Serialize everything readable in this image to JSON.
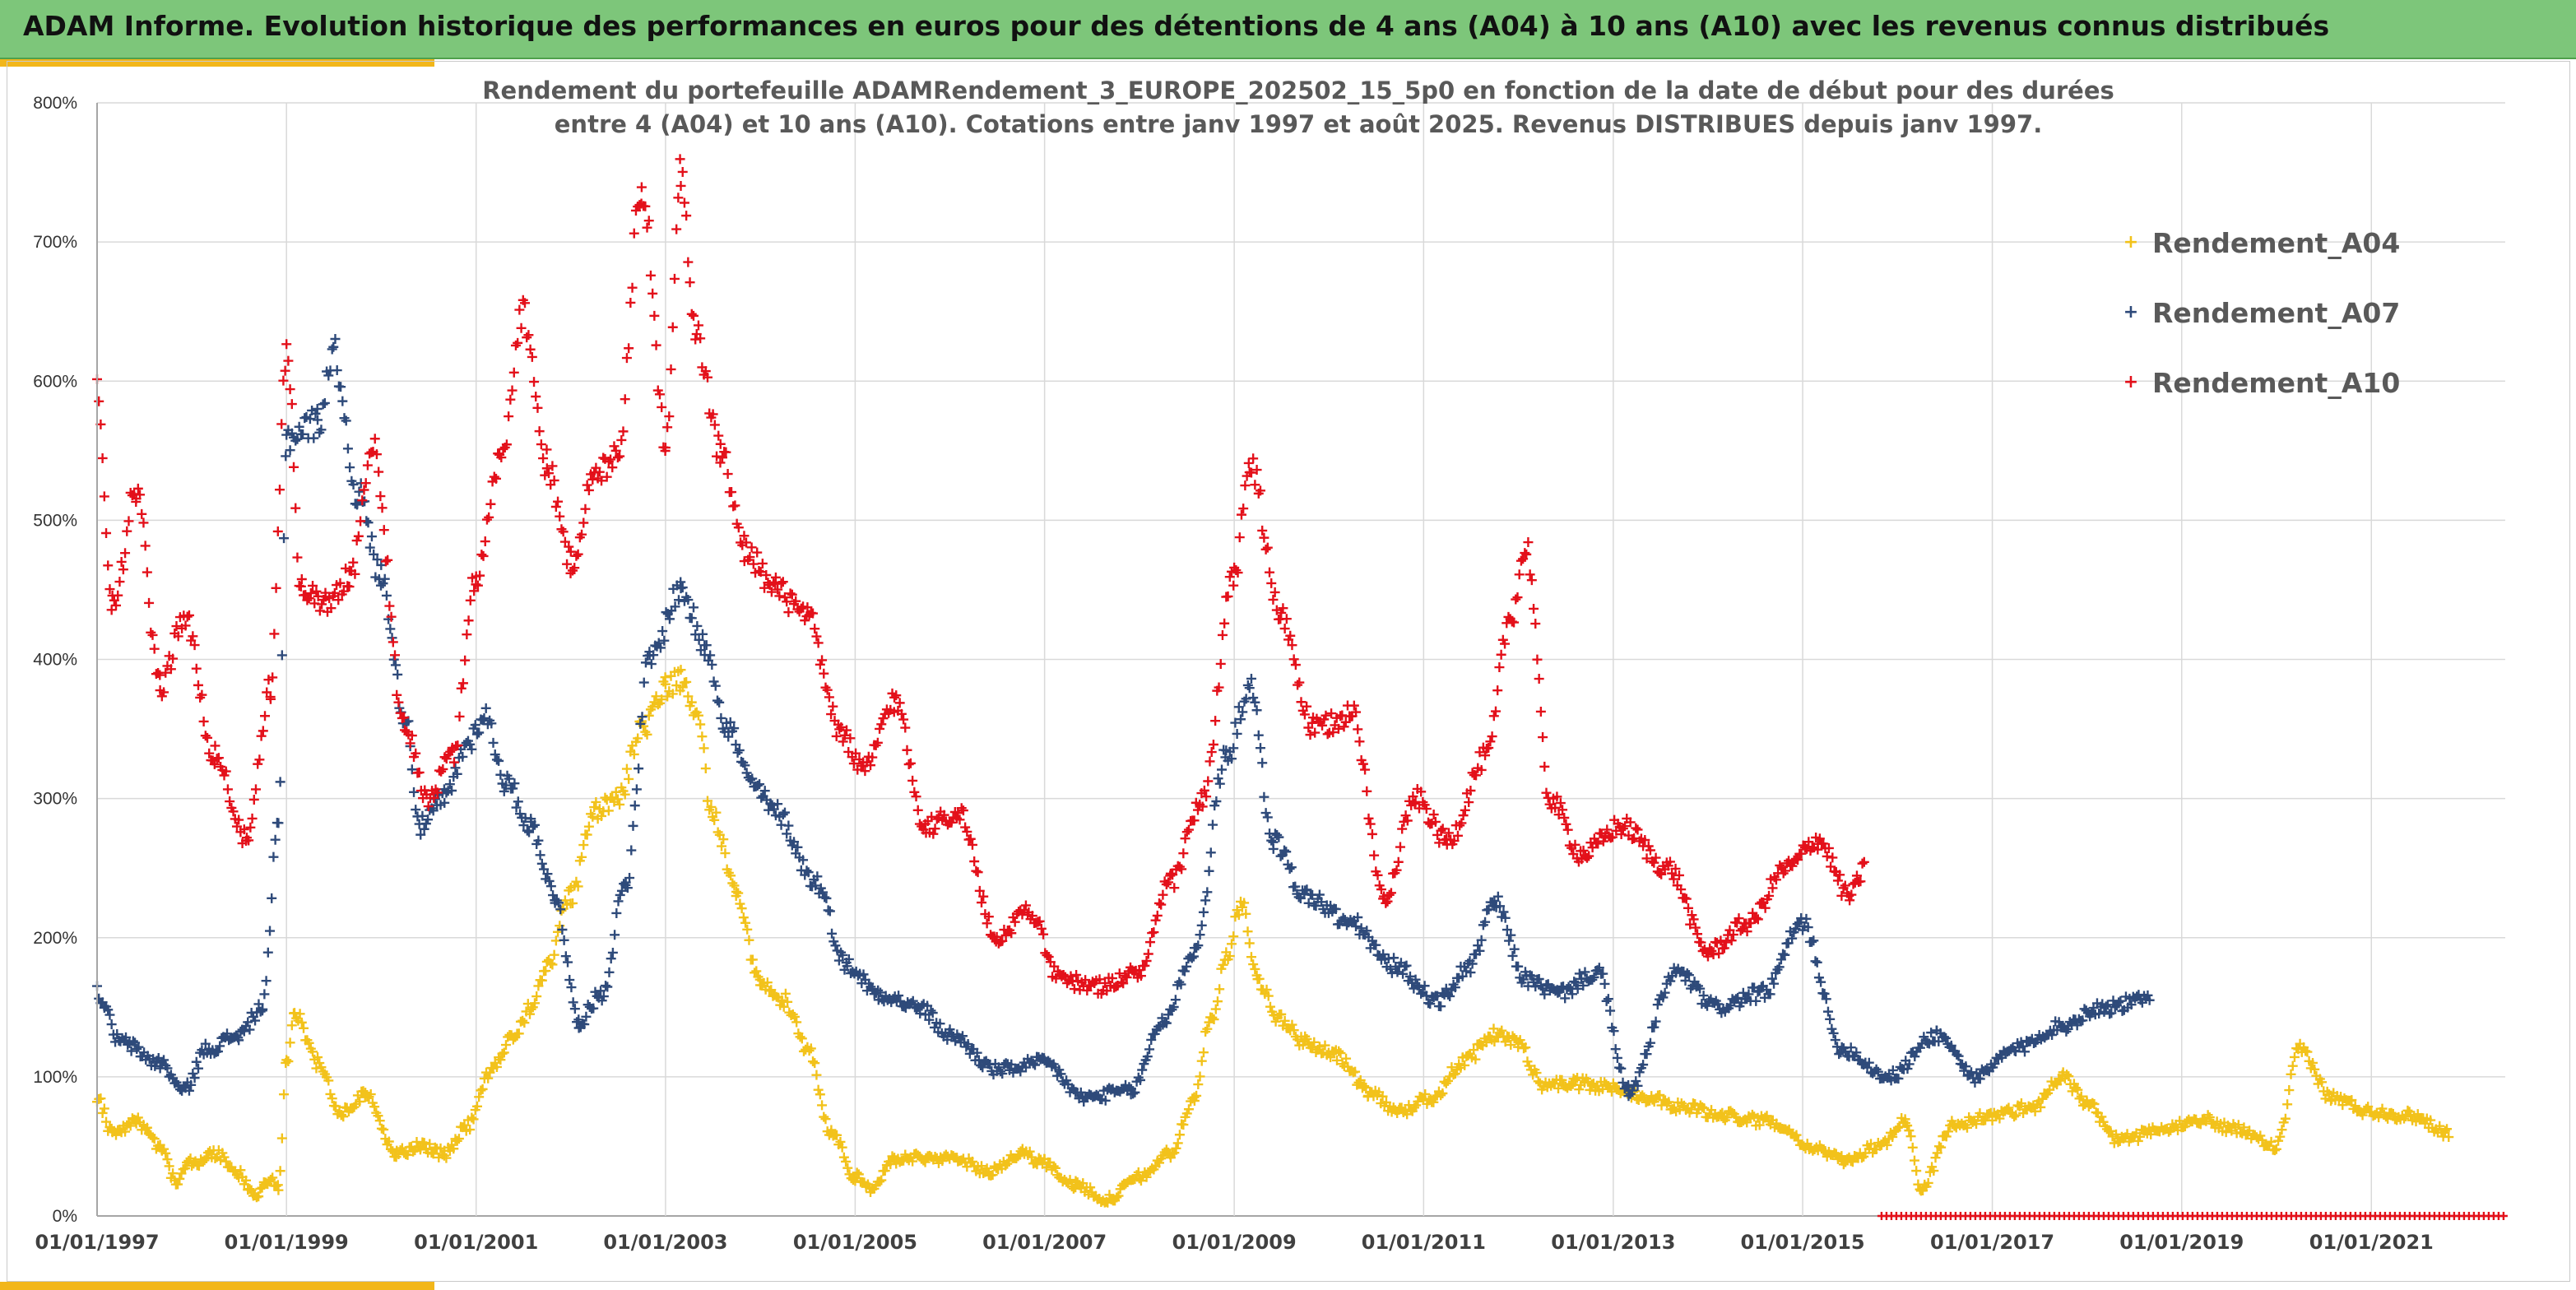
{
  "banner": {
    "title": "ADAM Informe. Evolution historique des performances en euros pour des détentions de 4 ans (A04) à 10 ans (A10) avec les revenus connus distribués"
  },
  "colors": {
    "banner_bg": "#7dc67a",
    "accent_gold": "#f2b61a",
    "grid": "#d9d9d9",
    "axis": "#a6a6a6"
  },
  "chart_data": {
    "type": "scatter",
    "title_lines": [
      "Rendement du portefeuille ADAMRendement_3_EUROPE_202502_15_5p0  en fonction de la date de début pour des durées",
      "entre 4 (A04) et 10 ans (A10). Cotations entre janv 1997 et août 2025. Revenus DISTRIBUES depuis janv 1997."
    ],
    "xlabel": "",
    "ylabel": "",
    "x_range": [
      "1997-01-01",
      "2022-06-01"
    ],
    "x_ticks": [
      "01/01/1997",
      "01/01/1999",
      "01/01/2001",
      "01/01/2003",
      "01/01/2005",
      "01/01/2007",
      "01/01/2009",
      "01/01/2011",
      "01/01/2013",
      "01/01/2015",
      "01/01/2017",
      "01/01/2019",
      "01/01/2021"
    ],
    "ylim": [
      0,
      8
    ],
    "y_ticks": [
      "0%",
      "100%",
      "200%",
      "300%",
      "400%",
      "500%",
      "600%",
      "700%",
      "800%"
    ],
    "grid": true,
    "marker": "+",
    "legend_position": "top-right",
    "series": [
      {
        "name": "Rendement_A04",
        "color": "#f2c21b",
        "points": [
          [
            "1997-01-01",
            0.85
          ],
          [
            "1997-03-01",
            0.6
          ],
          [
            "1997-06-01",
            0.68
          ],
          [
            "1997-09-01",
            0.5
          ],
          [
            "1997-11-01",
            0.25
          ],
          [
            "1998-01-01",
            0.38
          ],
          [
            "1998-04-01",
            0.45
          ],
          [
            "1998-07-01",
            0.3
          ],
          [
            "1998-09-01",
            0.15
          ],
          [
            "1998-11-01",
            0.25
          ],
          [
            "1998-12-01",
            0.2
          ],
          [
            "1999-01-01",
            1.1
          ],
          [
            "1999-02-01",
            1.45
          ],
          [
            "1999-05-01",
            1.1
          ],
          [
            "1999-08-01",
            0.75
          ],
          [
            "1999-11-01",
            0.88
          ],
          [
            "2000-03-01",
            0.45
          ],
          [
            "2000-06-01",
            0.5
          ],
          [
            "2000-09-01",
            0.45
          ],
          [
            "2000-12-01",
            0.65
          ],
          [
            "2001-03-01",
            1.05
          ],
          [
            "2001-06-01",
            1.3
          ],
          [
            "2001-08-01",
            1.5
          ],
          [
            "2001-10-01",
            1.8
          ],
          [
            "2002-01-01",
            2.3
          ],
          [
            "2002-04-01",
            2.9
          ],
          [
            "2002-07-01",
            3.0
          ],
          [
            "2002-10-01",
            3.5
          ],
          [
            "2003-01-01",
            3.8
          ],
          [
            "2003-03-01",
            3.85
          ],
          [
            "2003-05-01",
            3.6
          ],
          [
            "2003-07-01",
            2.9
          ],
          [
            "2003-10-01",
            2.3
          ],
          [
            "2004-01-01",
            1.7
          ],
          [
            "2004-04-01",
            1.55
          ],
          [
            "2004-07-01",
            1.2
          ],
          [
            "2004-10-01",
            0.6
          ],
          [
            "2005-01-01",
            0.28
          ],
          [
            "2005-03-01",
            0.2
          ],
          [
            "2005-06-01",
            0.4
          ],
          [
            "2005-10-01",
            0.42
          ],
          [
            "2006-02-01",
            0.4
          ],
          [
            "2006-06-01",
            0.32
          ],
          [
            "2006-10-01",
            0.45
          ],
          [
            "2007-01-01",
            0.38
          ],
          [
            "2007-05-01",
            0.22
          ],
          [
            "2007-09-01",
            0.12
          ],
          [
            "2008-01-01",
            0.28
          ],
          [
            "2008-05-01",
            0.45
          ],
          [
            "2008-08-01",
            0.85
          ],
          [
            "2008-10-01",
            1.4
          ],
          [
            "2008-12-01",
            1.85
          ],
          [
            "2009-02-01",
            2.25
          ],
          [
            "2009-04-01",
            1.7
          ],
          [
            "2009-07-01",
            1.4
          ],
          [
            "2009-10-01",
            1.25
          ],
          [
            "2010-02-01",
            1.15
          ],
          [
            "2010-06-01",
            0.9
          ],
          [
            "2010-10-01",
            0.75
          ],
          [
            "2011-02-01",
            0.85
          ],
          [
            "2011-06-01",
            1.1
          ],
          [
            "2011-10-01",
            1.3
          ],
          [
            "2012-01-01",
            1.25
          ],
          [
            "2012-04-01",
            0.95
          ],
          [
            "2012-08-01",
            0.95
          ],
          [
            "2013-01-01",
            0.92
          ],
          [
            "2013-06-01",
            0.85
          ],
          [
            "2013-10-01",
            0.78
          ],
          [
            "2014-03-01",
            0.72
          ],
          [
            "2014-09-01",
            0.68
          ],
          [
            "2015-03-01",
            0.48
          ],
          [
            "2015-06-01",
            0.4
          ],
          [
            "2015-11-01",
            0.5
          ],
          [
            "2016-02-01",
            0.7
          ],
          [
            "2016-04-01",
            0.2
          ],
          [
            "2016-08-01",
            0.65
          ],
          [
            "2017-01-01",
            0.72
          ],
          [
            "2017-06-01",
            0.78
          ],
          [
            "2017-10-01",
            1.0
          ],
          [
            "2018-01-01",
            0.8
          ],
          [
            "2018-05-01",
            0.55
          ],
          [
            "2018-10-01",
            0.6
          ],
          [
            "2019-03-01",
            0.7
          ],
          [
            "2019-08-01",
            0.62
          ],
          [
            "2020-01-01",
            0.5
          ],
          [
            "2020-04-01",
            1.2
          ],
          [
            "2020-08-01",
            0.85
          ],
          [
            "2021-01-01",
            0.75
          ],
          [
            "2021-06-01",
            0.72
          ],
          [
            "2021-11-01",
            0.6
          ]
        ]
      },
      {
        "name": "Rendement_A07",
        "color": "#2e4a7a",
        "points": [
          [
            "1997-01-01",
            1.6
          ],
          [
            "1997-04-01",
            1.25
          ],
          [
            "1997-09-01",
            1.1
          ],
          [
            "1997-12-01",
            0.9
          ],
          [
            "1998-03-01",
            1.2
          ],
          [
            "1998-07-01",
            1.3
          ],
          [
            "1998-10-01",
            1.5
          ],
          [
            "1998-12-01",
            2.8
          ],
          [
            "1999-01-01",
            5.6
          ],
          [
            "1999-05-01",
            5.7
          ],
          [
            "1999-07-01",
            6.2
          ],
          [
            "1999-10-01",
            5.2
          ],
          [
            "2000-01-01",
            4.6
          ],
          [
            "2000-04-01",
            3.6
          ],
          [
            "2000-06-01",
            2.8
          ],
          [
            "2000-09-01",
            3.0
          ],
          [
            "2000-12-01",
            3.4
          ],
          [
            "2001-02-01",
            3.6
          ],
          [
            "2001-05-01",
            3.1
          ],
          [
            "2001-08-01",
            2.8
          ],
          [
            "2001-11-01",
            2.3
          ],
          [
            "2002-02-01",
            1.4
          ],
          [
            "2002-05-01",
            1.6
          ],
          [
            "2002-08-01",
            2.4
          ],
          [
            "2002-11-01",
            4.0
          ],
          [
            "2003-03-01",
            4.5
          ],
          [
            "2003-06-01",
            4.1
          ],
          [
            "2003-09-01",
            3.5
          ],
          [
            "2003-12-01",
            3.1
          ],
          [
            "2004-03-01",
            2.9
          ],
          [
            "2004-08-01",
            2.4
          ],
          [
            "2004-12-01",
            1.8
          ],
          [
            "2005-04-01",
            1.6
          ],
          [
            "2005-09-01",
            1.5
          ],
          [
            "2006-01-01",
            1.3
          ],
          [
            "2006-07-01",
            1.05
          ],
          [
            "2007-01-01",
            1.1
          ],
          [
            "2007-06-01",
            0.85
          ],
          [
            "2007-12-01",
            0.9
          ],
          [
            "2008-04-01",
            1.4
          ],
          [
            "2008-08-01",
            1.9
          ],
          [
            "2008-12-01",
            3.3
          ],
          [
            "2009-03-01",
            3.8
          ],
          [
            "2009-06-01",
            2.7
          ],
          [
            "2009-10-01",
            2.3
          ],
          [
            "2010-04-01",
            2.1
          ],
          [
            "2010-09-01",
            1.8
          ],
          [
            "2011-03-01",
            1.55
          ],
          [
            "2011-07-01",
            1.8
          ],
          [
            "2011-10-01",
            2.25
          ],
          [
            "2012-02-01",
            1.7
          ],
          [
            "2012-06-01",
            1.6
          ],
          [
            "2012-11-01",
            1.75
          ],
          [
            "2013-03-01",
            0.9
          ],
          [
            "2013-09-01",
            1.75
          ],
          [
            "2014-02-01",
            1.5
          ],
          [
            "2014-08-01",
            1.6
          ],
          [
            "2015-01-01",
            2.1
          ],
          [
            "2015-06-01",
            1.2
          ],
          [
            "2015-12-01",
            1.0
          ],
          [
            "2016-06-01",
            1.3
          ],
          [
            "2016-11-01",
            1.0
          ],
          [
            "2017-04-01",
            1.2
          ],
          [
            "2017-09-01",
            1.35
          ],
          [
            "2018-03-01",
            1.5
          ],
          [
            "2018-09-01",
            1.55
          ]
        ]
      },
      {
        "name": "Rendement_A10",
        "color": "#e3101a",
        "points": [
          [
            "1997-01-01",
            6.0
          ],
          [
            "1997-03-01",
            4.4
          ],
          [
            "1997-06-01",
            5.2
          ],
          [
            "1997-09-01",
            3.8
          ],
          [
            "1997-12-01",
            4.3
          ],
          [
            "1998-04-01",
            3.3
          ],
          [
            "1998-08-01",
            2.7
          ],
          [
            "1998-11-01",
            3.8
          ],
          [
            "1999-01-01",
            6.2
          ],
          [
            "1999-03-01",
            4.5
          ],
          [
            "1999-06-01",
            4.4
          ],
          [
            "1999-09-01",
            4.6
          ],
          [
            "1999-12-01",
            5.5
          ],
          [
            "2000-04-01",
            3.5
          ],
          [
            "2000-07-01",
            3.0
          ],
          [
            "2000-10-01",
            3.3
          ],
          [
            "2001-01-01",
            4.6
          ],
          [
            "2001-04-01",
            5.4
          ],
          [
            "2001-07-01",
            6.5
          ],
          [
            "2001-10-01",
            5.4
          ],
          [
            "2002-01-01",
            4.7
          ],
          [
            "2002-04-01",
            5.3
          ],
          [
            "2002-07-01",
            5.5
          ],
          [
            "2002-10-01",
            7.4
          ],
          [
            "2003-01-01",
            5.6
          ],
          [
            "2003-03-01",
            7.5
          ],
          [
            "2003-05-01",
            6.3
          ],
          [
            "2003-08-01",
            5.5
          ],
          [
            "2003-11-01",
            4.8
          ],
          [
            "2004-03-01",
            4.5
          ],
          [
            "2004-07-01",
            4.3
          ],
          [
            "2004-11-01",
            3.5
          ],
          [
            "2005-02-01",
            3.2
          ],
          [
            "2005-06-01",
            3.7
          ],
          [
            "2005-10-01",
            2.8
          ],
          [
            "2006-02-01",
            2.9
          ],
          [
            "2006-07-01",
            2.0
          ],
          [
            "2006-11-01",
            2.2
          ],
          [
            "2007-03-01",
            1.7
          ],
          [
            "2007-08-01",
            1.65
          ],
          [
            "2008-01-01",
            1.75
          ],
          [
            "2008-05-01",
            2.4
          ],
          [
            "2008-09-01",
            3.0
          ],
          [
            "2009-01-01",
            4.6
          ],
          [
            "2009-03-01",
            5.4
          ],
          [
            "2009-07-01",
            4.3
          ],
          [
            "2009-11-01",
            3.5
          ],
          [
            "2010-04-01",
            3.6
          ],
          [
            "2010-08-01",
            2.3
          ],
          [
            "2010-12-01",
            3.0
          ],
          [
            "2011-04-01",
            2.7
          ],
          [
            "2011-09-01",
            3.3
          ],
          [
            "2011-12-01",
            4.3
          ],
          [
            "2012-02-01",
            4.8
          ],
          [
            "2012-05-01",
            3.0
          ],
          [
            "2012-09-01",
            2.6
          ],
          [
            "2013-02-01",
            2.8
          ],
          [
            "2013-08-01",
            2.5
          ],
          [
            "2014-01-01",
            1.9
          ],
          [
            "2014-06-01",
            2.1
          ],
          [
            "2014-11-01",
            2.5
          ],
          [
            "2015-03-01",
            2.7
          ],
          [
            "2015-07-01",
            2.3
          ],
          [
            "2015-09-01",
            2.5
          ]
        ]
      }
    ],
    "baseline_series": {
      "color": "#e3101a",
      "value": 0,
      "x_from": "2015-11-01",
      "x_to": "2022-06-01"
    }
  }
}
